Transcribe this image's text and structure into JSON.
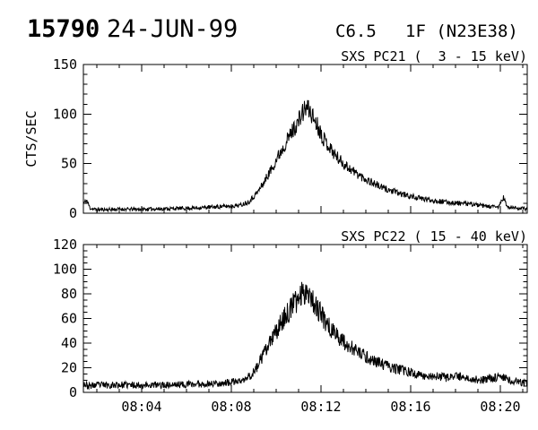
{
  "header": {
    "flare_number": "15790",
    "date": "24-JUN-99",
    "goes_class": "C6.5",
    "optical_class_position": "1F (N23E38)"
  },
  "x_axis": {
    "xlim_minutes_after_0800": [
      1.4,
      21.2
    ],
    "minor_step_min": 1,
    "tick_minutes": [
      4,
      8,
      12,
      16,
      20
    ],
    "tick_labels": [
      "08:04",
      "08:08",
      "08:12",
      "08:16",
      "08:20"
    ]
  },
  "chart_data": [
    {
      "type": "line",
      "title": "SXS PC21 (  3 - 15 keV)",
      "ylabel": "CTS/SEC",
      "xlabel": "",
      "ylim": [
        0,
        150
      ],
      "ytick_major": 50,
      "ytick_minor": 10,
      "grid": false,
      "legend": null,
      "units": "counts/sec vs time (minutes after 08:00 UT)",
      "points": [
        [
          1.4,
          10
        ],
        [
          1.55,
          13
        ],
        [
          1.7,
          5
        ],
        [
          2,
          3.5
        ],
        [
          3,
          4
        ],
        [
          4,
          4
        ],
        [
          5,
          4.5
        ],
        [
          6,
          5
        ],
        [
          7,
          6
        ],
        [
          7.8,
          7
        ],
        [
          8.4,
          8
        ],
        [
          8.8,
          12
        ],
        [
          9.2,
          22
        ],
        [
          9.5,
          33
        ],
        [
          9.8,
          45
        ],
        [
          10.1,
          58
        ],
        [
          10.4,
          70
        ],
        [
          10.7,
          82
        ],
        [
          11,
          93
        ],
        [
          11.2,
          102
        ],
        [
          11.35,
          107
        ],
        [
          11.5,
          103
        ],
        [
          11.7,
          95
        ],
        [
          11.9,
          86
        ],
        [
          12.1,
          76
        ],
        [
          12.4,
          66
        ],
        [
          12.7,
          57
        ],
        [
          13,
          50
        ],
        [
          13.4,
          43
        ],
        [
          13.8,
          37
        ],
        [
          14.2,
          32
        ],
        [
          14.7,
          26
        ],
        [
          15.2,
          22
        ],
        [
          15.8,
          18
        ],
        [
          16.4,
          15
        ],
        [
          17,
          13
        ],
        [
          17.6,
          11
        ],
        [
          18.2,
          10
        ],
        [
          18.8,
          9
        ],
        [
          19.3,
          7
        ],
        [
          19.9,
          6
        ],
        [
          20.15,
          16
        ],
        [
          20.3,
          6
        ],
        [
          20.9,
          5
        ],
        [
          21.2,
          4
        ]
      ],
      "noise_base": 1.5,
      "noise_scale": 0.085,
      "seed": 11,
      "show_x_labels": false
    },
    {
      "type": "line",
      "title": "SXS PC22 ( 15 - 40 keV)",
      "ylabel": "",
      "xlabel": "",
      "ylim": [
        0,
        120
      ],
      "ytick_major": 20,
      "ytick_minor": 5,
      "grid": false,
      "legend": null,
      "units": "counts/sec vs time (minutes after 08:00 UT)",
      "points": [
        [
          1.4,
          8
        ],
        [
          1.6,
          5
        ],
        [
          2,
          6
        ],
        [
          3,
          6
        ],
        [
          4,
          6
        ],
        [
          5,
          6
        ],
        [
          6,
          6.5
        ],
        [
          7,
          7
        ],
        [
          8,
          8
        ],
        [
          8.6,
          10
        ],
        [
          9,
          16
        ],
        [
          9.3,
          26
        ],
        [
          9.6,
          36
        ],
        [
          9.9,
          46
        ],
        [
          10.2,
          56
        ],
        [
          10.5,
          64
        ],
        [
          10.8,
          72
        ],
        [
          11.1,
          79
        ],
        [
          11.35,
          84
        ],
        [
          11.5,
          80
        ],
        [
          11.7,
          73
        ],
        [
          11.9,
          66
        ],
        [
          12.2,
          58
        ],
        [
          12.5,
          50
        ],
        [
          12.9,
          43
        ],
        [
          13.3,
          37
        ],
        [
          13.7,
          32
        ],
        [
          14.2,
          27
        ],
        [
          14.7,
          23
        ],
        [
          15.2,
          20
        ],
        [
          15.8,
          17
        ],
        [
          16.4,
          14
        ],
        [
          17,
          13
        ],
        [
          17.6,
          12
        ],
        [
          18.2,
          13
        ],
        [
          18.6,
          11
        ],
        [
          19.2,
          10
        ],
        [
          19.7,
          12
        ],
        [
          20.1,
          13
        ],
        [
          20.5,
          9
        ],
        [
          21,
          8
        ],
        [
          21.2,
          7
        ]
      ],
      "noise_base": 2.2,
      "noise_scale": 0.105,
      "seed": 23,
      "show_x_labels": true
    }
  ],
  "colors": {
    "foreground": "#000000",
    "background": "#ffffff"
  }
}
